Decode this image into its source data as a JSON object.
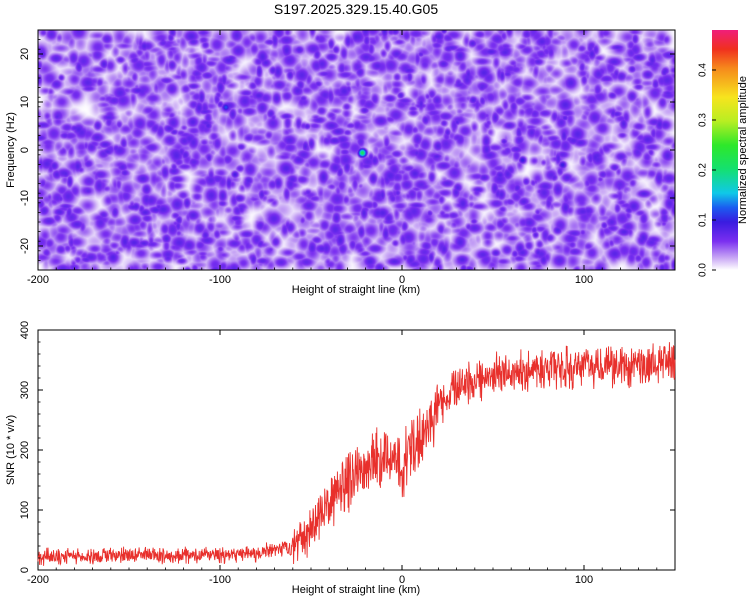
{
  "chart_data": [
    {
      "type": "heatmap",
      "title": "S197.2025.329.15.40.G05",
      "xlabel": "Height of straight line (km)",
      "ylabel": "Frequency (Hz)",
      "xlim": [
        -200,
        150
      ],
      "ylim": [
        -25,
        25
      ],
      "xticks": [
        -200,
        -100,
        0,
        100
      ],
      "xtick_labels": [
        "-200",
        "-100",
        "0",
        "100"
      ],
      "yticks": [
        20,
        10,
        0,
        -10,
        -20
      ],
      "ytick_labels": [
        "20",
        "10",
        "0",
        "-10",
        "-20"
      ],
      "colorbar": {
        "label": "Normalized spectral amplitude",
        "range": [
          0.0,
          0.48
        ],
        "ticks": [
          0.0,
          0.1,
          0.2,
          0.3,
          0.4
        ],
        "tick_labels": [
          "0.0",
          "0.1",
          "0.2",
          "0.3",
          "0.4"
        ]
      },
      "background_level_range": [
        0.02,
        0.08
      ],
      "peaks": [
        {
          "x": -22,
          "y": -0.5,
          "value": 0.22
        },
        {
          "x": -97,
          "y": 9,
          "value": 0.12
        },
        {
          "x": 88,
          "y": -3,
          "value": 0.1
        },
        {
          "x": 66,
          "y": -2,
          "value": 0.1
        },
        {
          "x": -92,
          "y": -5,
          "value": 0.09
        }
      ]
    },
    {
      "type": "line",
      "xlabel": "Height of straight line (km)",
      "ylabel": "SNR (10 * v/v)",
      "xlim": [
        -200,
        150
      ],
      "ylim": [
        0,
        400
      ],
      "xticks": [
        -200,
        -100,
        0,
        100
      ],
      "xtick_labels": [
        "-200",
        "-100",
        "0",
        "100"
      ],
      "yticks": [
        0,
        100,
        200,
        300,
        400
      ],
      "ytick_labels": [
        "0",
        "100",
        "200",
        "300",
        "400"
      ],
      "series": [
        {
          "name": "SNR",
          "color": "#e8302c",
          "x_knots": [
            -200,
            -120,
            -80,
            -60,
            -50,
            -40,
            -30,
            -20,
            -10,
            0,
            10,
            20,
            30,
            50,
            70,
            90,
            110,
            130,
            150
          ],
          "y_knots": [
            22,
            24,
            26,
            38,
            70,
            110,
            150,
            175,
            185,
            175,
            220,
            270,
            305,
            325,
            335,
            335,
            340,
            345,
            350
          ],
          "noise_amplitude": 22
        }
      ]
    }
  ]
}
